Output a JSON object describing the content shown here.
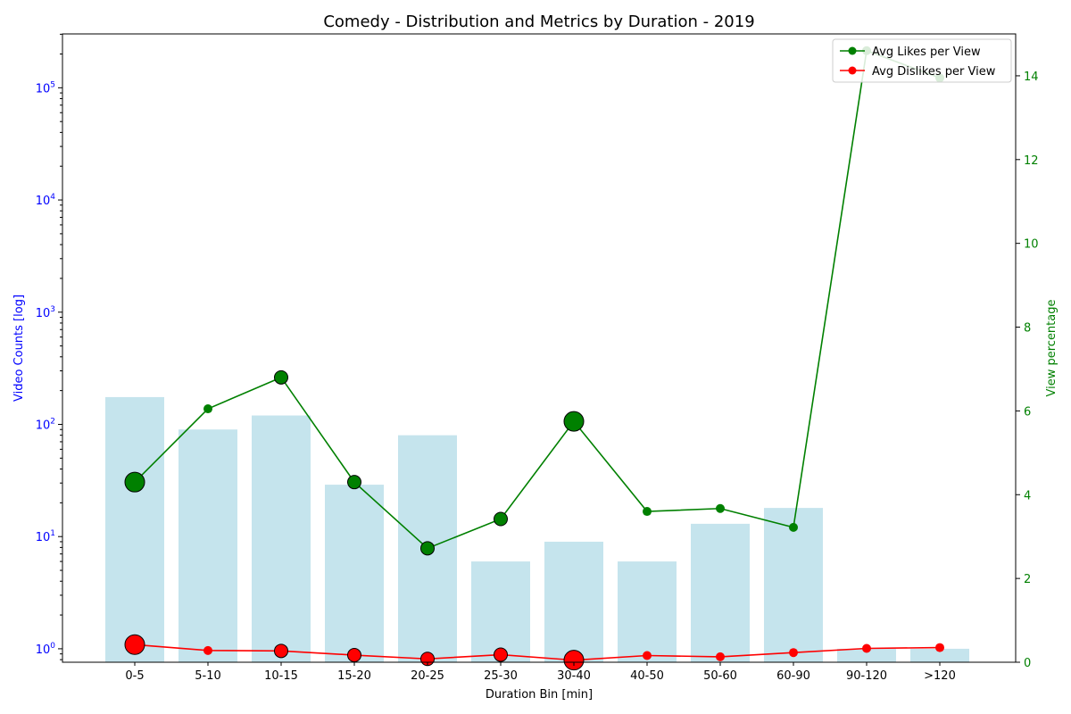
{
  "chart_data": {
    "type": "bar+line",
    "title": "Comedy - Distribution and Metrics by Duration - 2019",
    "xlabel": "Duration Bin [min]",
    "ylabel_left": "Video Counts [log]",
    "ylabel_right": "View percentage",
    "y_left_scale": "log",
    "y_left_ticks": [
      1,
      10,
      100,
      1000,
      10000,
      100000
    ],
    "y_left_tick_labels": [
      {
        "base": "10",
        "exp": "0"
      },
      {
        "base": "10",
        "exp": "1"
      },
      {
        "base": "10",
        "exp": "2"
      },
      {
        "base": "10",
        "exp": "3"
      },
      {
        "base": "10",
        "exp": "4"
      },
      {
        "base": "10",
        "exp": "5"
      }
    ],
    "y_right_ticks": [
      "0",
      "2",
      "4",
      "6",
      "8",
      "10",
      "12",
      "14"
    ],
    "y_right_lim": [
      0,
      15
    ],
    "categories": [
      "0-5",
      "5-10",
      "10-15",
      "15-20",
      "20-25",
      "25-30",
      "30-40",
      "40-50",
      "50-60",
      "60-90",
      "90-120",
      ">120"
    ],
    "bar_values": [
      175,
      90,
      120,
      29,
      80,
      6,
      9,
      6,
      13,
      18,
      1,
      1
    ],
    "series": [
      {
        "name": "Avg Likes per View",
        "color": "#008000",
        "values": [
          4.3,
          6.05,
          6.8,
          4.3,
          2.72,
          3.42,
          5.75,
          3.6,
          3.67,
          3.22,
          14.6,
          13.95
        ],
        "marker_weight": [
          3,
          1,
          2,
          2,
          2,
          2,
          3,
          1,
          1,
          1,
          1,
          1
        ]
      },
      {
        "name": "Avg Dislikes per View",
        "color": "#ff0000",
        "values": [
          0.42,
          0.28,
          0.27,
          0.17,
          0.08,
          0.18,
          0.05,
          0.16,
          0.13,
          0.23,
          0.33,
          0.35
        ],
        "marker_weight": [
          3,
          1,
          2,
          2,
          2,
          2,
          3,
          1,
          1,
          1,
          1,
          1
        ]
      }
    ],
    "bar_color": "#add8e6",
    "left_axis_color": "#0000ff",
    "right_axis_color": "#008000",
    "legend_position": "top-right",
    "grid": false
  }
}
